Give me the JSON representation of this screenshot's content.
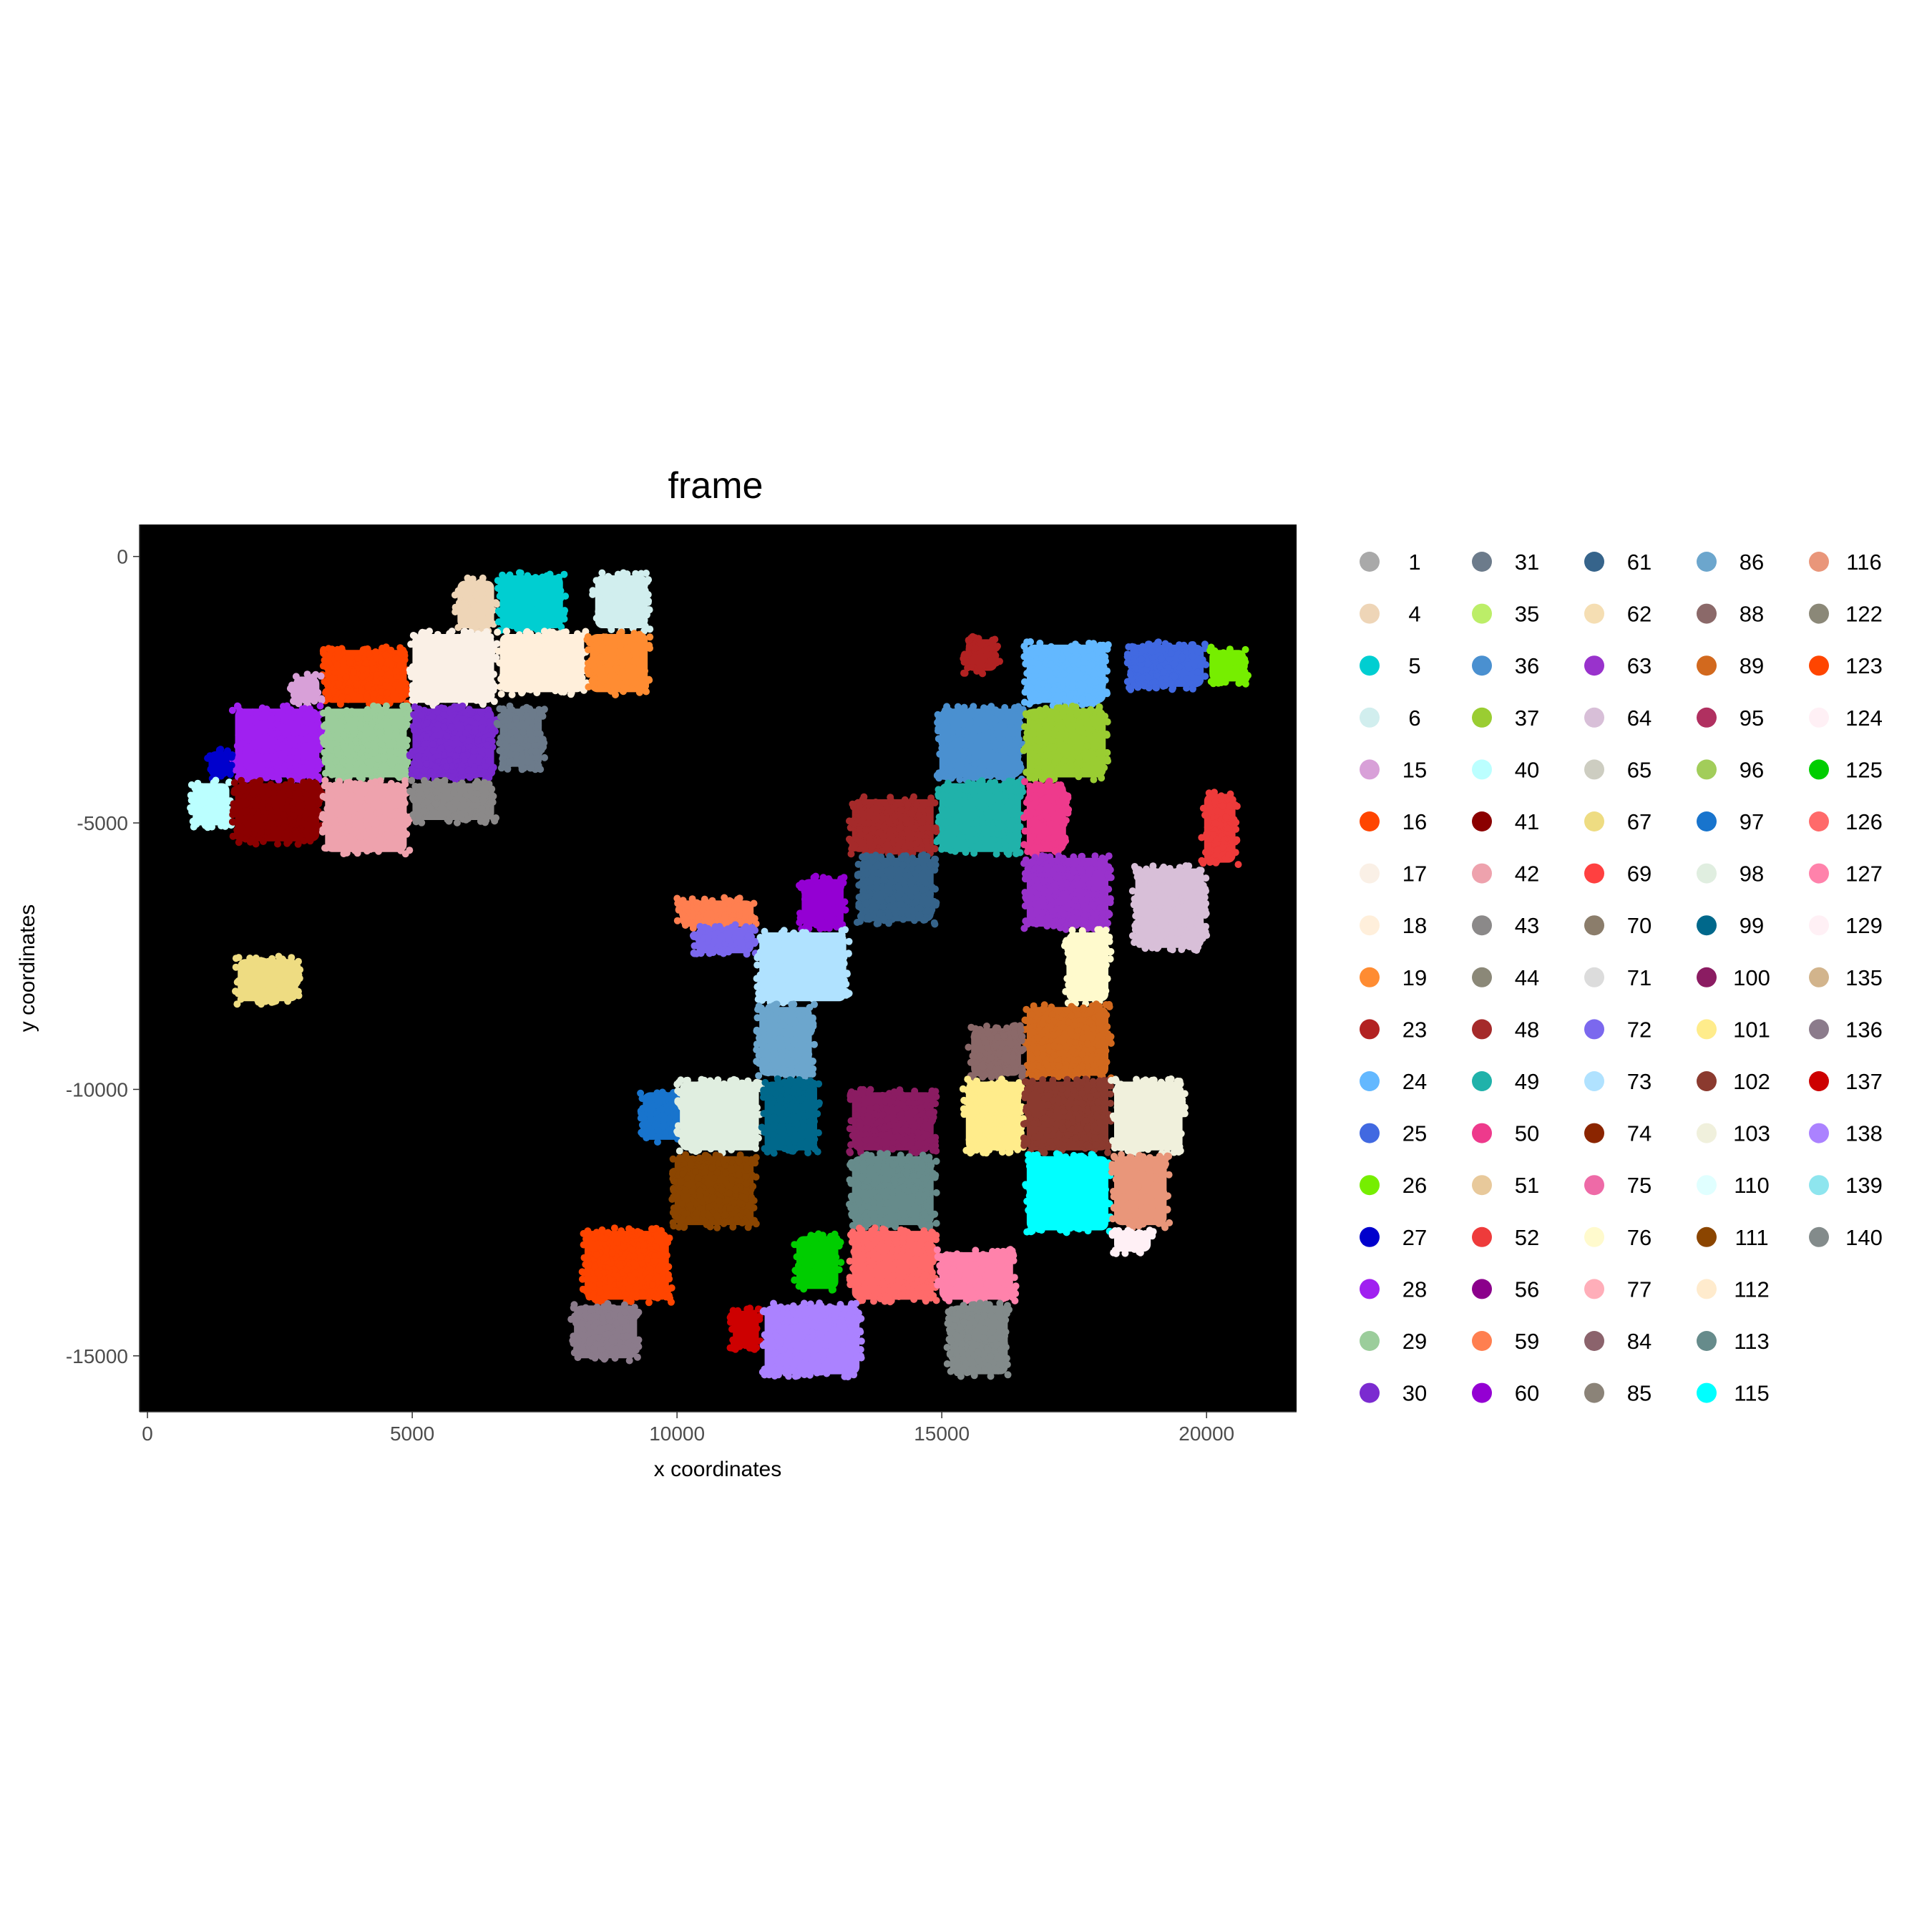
{
  "chart_data": {
    "type": "scatter",
    "title": "frame",
    "xlabel": "x coordinates",
    "ylabel": "y coordinates",
    "xlim": [
      -150,
      21700
    ],
    "ylim": [
      -16050,
      600
    ],
    "x_ticks": [
      0,
      5000,
      10000,
      15000,
      20000
    ],
    "x_tick_labels": [
      "0",
      "5000",
      "10000",
      "15000",
      "20000"
    ],
    "y_ticks": [
      0,
      -5000,
      -10000,
      -15000
    ],
    "y_tick_labels": [
      "0",
      "-5000",
      "-10000",
      "-15000"
    ],
    "panel_background": "#000000",
    "grid": false,
    "legend_position": "right",
    "legend_columns": 5,
    "legend": [
      {
        "label": "1",
        "color": "#A9A9A9"
      },
      {
        "label": "4",
        "color": "#EED5B7"
      },
      {
        "label": "5",
        "color": "#00CED1"
      },
      {
        "label": "6",
        "color": "#D1EEEE"
      },
      {
        "label": "15",
        "color": "#D8A0D8"
      },
      {
        "label": "16",
        "color": "#FF4500"
      },
      {
        "label": "17",
        "color": "#FAF0E6"
      },
      {
        "label": "18",
        "color": "#FFEFDB"
      },
      {
        "label": "19",
        "color": "#FF8C32"
      },
      {
        "label": "23",
        "color": "#B22222"
      },
      {
        "label": "24",
        "color": "#63B8FF"
      },
      {
        "label": "25",
        "color": "#4169E1"
      },
      {
        "label": "26",
        "color": "#76EE00"
      },
      {
        "label": "27",
        "color": "#0000CD"
      },
      {
        "label": "28",
        "color": "#A020F0"
      },
      {
        "label": "29",
        "color": "#9BCD9B"
      },
      {
        "label": "30",
        "color": "#7B2BD0"
      },
      {
        "label": "31",
        "color": "#6C7B8B"
      },
      {
        "label": "35",
        "color": "#BCEE68"
      },
      {
        "label": "36",
        "color": "#4A90D0"
      },
      {
        "label": "37",
        "color": "#9ACD32"
      },
      {
        "label": "40",
        "color": "#BBFFFF"
      },
      {
        "label": "41",
        "color": "#8B0000"
      },
      {
        "label": "42",
        "color": "#EEA2AD"
      },
      {
        "label": "43",
        "color": "#8B8989"
      },
      {
        "label": "44",
        "color": "#8B8878"
      },
      {
        "label": "48",
        "color": "#A52A2A"
      },
      {
        "label": "49",
        "color": "#20B2AA"
      },
      {
        "label": "50",
        "color": "#EE3A8C"
      },
      {
        "label": "51",
        "color": "#E8C99B"
      },
      {
        "label": "52",
        "color": "#EE3B3B"
      },
      {
        "label": "56",
        "color": "#8B008B"
      },
      {
        "label": "59",
        "color": "#FF7F50"
      },
      {
        "label": "60",
        "color": "#9400D3"
      },
      {
        "label": "61",
        "color": "#36648B"
      },
      {
        "label": "62",
        "color": "#F5DEB3"
      },
      {
        "label": "63",
        "color": "#9932CC"
      },
      {
        "label": "64",
        "color": "#D8BFD8"
      },
      {
        "label": "65",
        "color": "#CDCDC1"
      },
      {
        "label": "67",
        "color": "#EEDC82"
      },
      {
        "label": "69",
        "color": "#FF4040"
      },
      {
        "label": "70",
        "color": "#8B7D6B"
      },
      {
        "label": "71",
        "color": "#DCDCDC"
      },
      {
        "label": "72",
        "color": "#7B68EE"
      },
      {
        "label": "73",
        "color": "#B0E2FF"
      },
      {
        "label": "74",
        "color": "#8B2500"
      },
      {
        "label": "75",
        "color": "#EE6AA7"
      },
      {
        "label": "76",
        "color": "#FFFACD"
      },
      {
        "label": "77",
        "color": "#FFAEB9"
      },
      {
        "label": "84",
        "color": "#8B636C"
      },
      {
        "label": "85",
        "color": "#8B8378"
      },
      {
        "label": "86",
        "color": "#6CA6CD"
      },
      {
        "label": "88",
        "color": "#8B6969"
      },
      {
        "label": "89",
        "color": "#D2691E"
      },
      {
        "label": "95",
        "color": "#B03060"
      },
      {
        "label": "96",
        "color": "#A2CD5A"
      },
      {
        "label": "97",
        "color": "#1874CD"
      },
      {
        "label": "98",
        "color": "#E0EEE0"
      },
      {
        "label": "99",
        "color": "#00688B"
      },
      {
        "label": "100",
        "color": "#8B1C62"
      },
      {
        "label": "101",
        "color": "#FFEC8B"
      },
      {
        "label": "102",
        "color": "#8B3A2F"
      },
      {
        "label": "103",
        "color": "#F0F0DC"
      },
      {
        "label": "110",
        "color": "#E0FFFF"
      },
      {
        "label": "111",
        "color": "#8B4500"
      },
      {
        "label": "112",
        "color": "#FFEBCD"
      },
      {
        "label": "113",
        "color": "#668B8B"
      },
      {
        "label": "115",
        "color": "#00FFFF"
      },
      {
        "label": "116",
        "color": "#E9967A"
      },
      {
        "label": "122",
        "color": "#8B8878"
      },
      {
        "label": "123",
        "color": "#FF4500"
      },
      {
        "label": "124",
        "color": "#FFF0F5"
      },
      {
        "label": "125",
        "color": "#00CD00"
      },
      {
        "label": "126",
        "color": "#FF6A6A"
      },
      {
        "label": "127",
        "color": "#FF82AB"
      },
      {
        "label": "129",
        "color": "#FFF0F5"
      },
      {
        "label": "135",
        "color": "#D2B48C"
      },
      {
        "label": "136",
        "color": "#8B7B8B"
      },
      {
        "label": "137",
        "color": "#CD0000"
      },
      {
        "label": "138",
        "color": "#AB82FF"
      },
      {
        "label": "139",
        "color": "#8EE5EE"
      },
      {
        "label": "140",
        "color": "#838B8B"
      }
    ],
    "clusters": [
      {
        "label": "4",
        "x": [
          5800,
          6600
        ],
        "y": [
          -1400,
          -400
        ]
      },
      {
        "label": "5",
        "x": [
          6600,
          7900
        ],
        "y": [
          -1400,
          -300
        ]
      },
      {
        "label": "6",
        "x": [
          8400,
          9500
        ],
        "y": [
          -1400,
          -300
        ]
      },
      {
        "label": "16",
        "x": [
          3300,
          4950
        ],
        "y": [
          -2800,
          -1700
        ]
      },
      {
        "label": "17",
        "x": [
          4950,
          6600
        ],
        "y": [
          -2800,
          -1400
        ]
      },
      {
        "label": "18",
        "x": [
          6600,
          8300
        ],
        "y": [
          -2600,
          -1400
        ]
      },
      {
        "label": "19",
        "x": [
          8300,
          9500
        ],
        "y": [
          -2600,
          -1400
        ]
      },
      {
        "label": "15",
        "x": [
          2700,
          3300
        ],
        "y": [
          -2800,
          -2200
        ]
      },
      {
        "label": "28",
        "x": [
          1600,
          3300
        ],
        "y": [
          -4200,
          -2800
        ]
      },
      {
        "label": "29",
        "x": [
          3300,
          4950
        ],
        "y": [
          -4200,
          -2800
        ]
      },
      {
        "label": "30",
        "x": [
          4950,
          6600
        ],
        "y": [
          -4200,
          -2800
        ]
      },
      {
        "label": "31",
        "x": [
          6600,
          7500
        ],
        "y": [
          -4000,
          -2800
        ]
      },
      {
        "label": "27",
        "x": [
          1100,
          1600
        ],
        "y": [
          -4200,
          -3600
        ]
      },
      {
        "label": "40",
        "x": [
          800,
          1600
        ],
        "y": [
          -5100,
          -4200
        ]
      },
      {
        "label": "41",
        "x": [
          1600,
          3300
        ],
        "y": [
          -5400,
          -4200
        ]
      },
      {
        "label": "42",
        "x": [
          3300,
          4950
        ],
        "y": [
          -5600,
          -4200
        ]
      },
      {
        "label": "43",
        "x": [
          4950,
          6600
        ],
        "y": [
          -5000,
          -4200
        ]
      },
      {
        "label": "67",
        "x": [
          1650,
          2900
        ],
        "y": [
          -8400,
          -7500
        ]
      },
      {
        "label": "23",
        "x": [
          15400,
          16100
        ],
        "y": [
          -2200,
          -1500
        ]
      },
      {
        "label": "24",
        "x": [
          16550,
          18150
        ],
        "y": [
          -2800,
          -1600
        ]
      },
      {
        "label": "25",
        "x": [
          18500,
          20000
        ],
        "y": [
          -2500,
          -1600
        ]
      },
      {
        "label": "26",
        "x": [
          20000,
          20800
        ],
        "y": [
          -2400,
          -1700
        ]
      },
      {
        "label": "36",
        "x": [
          14900,
          16550
        ],
        "y": [
          -4200,
          -2800
        ]
      },
      {
        "label": "37",
        "x": [
          16550,
          18150
        ],
        "y": [
          -4200,
          -2800
        ]
      },
      {
        "label": "49",
        "x": [
          14900,
          16550
        ],
        "y": [
          -5600,
          -4200
        ]
      },
      {
        "label": "50",
        "x": [
          16550,
          17400
        ],
        "y": [
          -5600,
          -4200
        ]
      },
      {
        "label": "52",
        "x": [
          19900,
          20600
        ],
        "y": [
          -5800,
          -4400
        ]
      },
      {
        "label": "64",
        "x": [
          18600,
          20000
        ],
        "y": [
          -7400,
          -5800
        ]
      },
      {
        "label": "48",
        "x": [
          13250,
          14900
        ],
        "y": [
          -5600,
          -4500
        ]
      },
      {
        "label": "61",
        "x": [
          13400,
          14900
        ],
        "y": [
          -6900,
          -5600
        ]
      },
      {
        "label": "63",
        "x": [
          16550,
          18200
        ],
        "y": [
          -7000,
          -5600
        ]
      },
      {
        "label": "59",
        "x": [
          10000,
          11500
        ],
        "y": [
          -7000,
          -6400
        ]
      },
      {
        "label": "60",
        "x": [
          12300,
          13200
        ],
        "y": [
          -7000,
          -6000
        ]
      },
      {
        "label": "72",
        "x": [
          10300,
          11500
        ],
        "y": [
          -7500,
          -6900
        ]
      },
      {
        "label": "73",
        "x": [
          11500,
          13250
        ],
        "y": [
          -8400,
          -7000
        ]
      },
      {
        "label": "76",
        "x": [
          17300,
          18200
        ],
        "y": [
          -8400,
          -7000
        ]
      },
      {
        "label": "86",
        "x": [
          11500,
          12600
        ],
        "y": [
          -9800,
          -8400
        ]
      },
      {
        "label": "89",
        "x": [
          16550,
          18200
        ],
        "y": [
          -9800,
          -8400
        ]
      },
      {
        "label": "88",
        "x": [
          15500,
          16550
        ],
        "y": [
          -9800,
          -8800
        ]
      },
      {
        "label": "97",
        "x": [
          9300,
          10300
        ],
        "y": [
          -11000,
          -10000
        ]
      },
      {
        "label": "98",
        "x": [
          10000,
          11600
        ],
        "y": [
          -11200,
          -9800
        ]
      },
      {
        "label": "99",
        "x": [
          11600,
          12700
        ],
        "y": [
          -11200,
          -9800
        ]
      },
      {
        "label": "100",
        "x": [
          13250,
          14900
        ],
        "y": [
          -11200,
          -10000
        ]
      },
      {
        "label": "101",
        "x": [
          15400,
          16550
        ],
        "y": [
          -11200,
          -9800
        ]
      },
      {
        "label": "102",
        "x": [
          16550,
          18200
        ],
        "y": [
          -11200,
          -9800
        ]
      },
      {
        "label": "103",
        "x": [
          18200,
          19600
        ],
        "y": [
          -11200,
          -9800
        ]
      },
      {
        "label": "111",
        "x": [
          9900,
          11500
        ],
        "y": [
          -12600,
          -11200
        ]
      },
      {
        "label": "113",
        "x": [
          13250,
          14900
        ],
        "y": [
          -12600,
          -11200
        ]
      },
      {
        "label": "115",
        "x": [
          16550,
          18200
        ],
        "y": [
          -12700,
          -11200
        ]
      },
      {
        "label": "116",
        "x": [
          18200,
          19300
        ],
        "y": [
          -12600,
          -11200
        ]
      },
      {
        "label": "123",
        "x": [
          8200,
          9900
        ],
        "y": [
          -14000,
          -12600
        ]
      },
      {
        "label": "126",
        "x": [
          13250,
          14900
        ],
        "y": [
          -14000,
          -12600
        ]
      },
      {
        "label": "127",
        "x": [
          14900,
          16400
        ],
        "y": [
          -14000,
          -13000
        ]
      },
      {
        "label": "124",
        "x": [
          18200,
          19000
        ],
        "y": [
          -13100,
          -12600
        ]
      },
      {
        "label": "136",
        "x": [
          8000,
          9300
        ],
        "y": [
          -15100,
          -14000
        ]
      },
      {
        "label": "137",
        "x": [
          11000,
          11600
        ],
        "y": [
          -14900,
          -14100
        ]
      },
      {
        "label": "138",
        "x": [
          11600,
          13500
        ],
        "y": [
          -15400,
          -14000
        ]
      },
      {
        "label": "140",
        "x": [
          15100,
          16300
        ],
        "y": [
          -15400,
          -14000
        ]
      },
      {
        "label": "125",
        "x": [
          12200,
          13100
        ],
        "y": [
          -13800,
          -12700
        ]
      }
    ]
  }
}
